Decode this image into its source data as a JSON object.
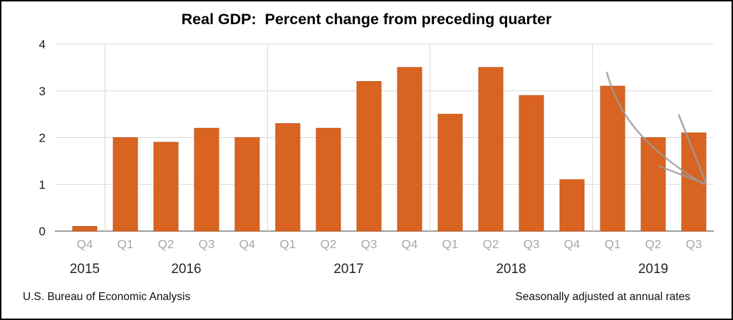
{
  "chart_data": {
    "type": "bar",
    "title": "Real GDP:  Percent change from preceding quarter",
    "xlabel": "",
    "ylabel": "",
    "ylim": [
      0,
      4
    ],
    "yticks": [
      0,
      1,
      2,
      3,
      4
    ],
    "grid": true,
    "legend": "none",
    "bar_color": "#d96421",
    "bar_border_color": "#c2571c",
    "gridline_color": "#d9d9d9",
    "axis_line_color": "#808080",
    "ytick_label_color": "#1a1a1a",
    "quarter_label_color": "#a6a6a6",
    "year_label_color": "#262626",
    "quarters": [
      "Q4",
      "Q1",
      "Q2",
      "Q3",
      "Q4",
      "Q1",
      "Q2",
      "Q3",
      "Q4",
      "Q1",
      "Q2",
      "Q3",
      "Q4",
      "Q1",
      "Q2",
      "Q3"
    ],
    "values": [
      0.1,
      2.0,
      1.9,
      2.2,
      2.0,
      2.3,
      2.2,
      3.2,
      3.5,
      2.5,
      3.5,
      2.9,
      1.1,
      3.1,
      2.0,
      2.1
    ],
    "year_groups": [
      {
        "label": "2015",
        "count": 1
      },
      {
        "label": "2016",
        "count": 4
      },
      {
        "label": "2017",
        "count": 4
      },
      {
        "label": "2018",
        "count": 4
      },
      {
        "label": "2019",
        "count": 3
      }
    ],
    "annotation": {
      "type": "hand-drawn-arrow",
      "color": "#9b9b9b",
      "description": "downward sweeping arrow over the 2019 bars pointing to lower right"
    }
  },
  "footer": {
    "source": "U.S. Bureau of Economic Analysis",
    "note": "Seasonally adjusted at annual rates"
  }
}
